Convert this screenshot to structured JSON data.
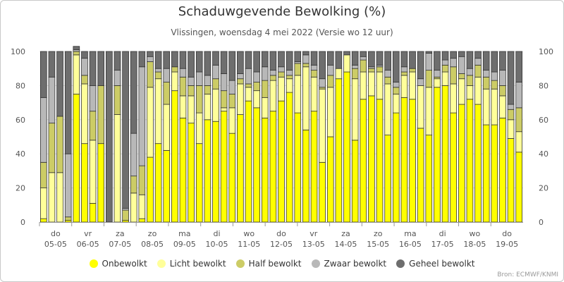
{
  "chart_data": {
    "type": "bar",
    "stacked": true,
    "title": "Schaduwgevende Bewolking (%)",
    "subtitle": "Vlissingen, woensdag 4 mei 2022 (Versie wo 12 uur)",
    "source": "Bron: ECMWF/KNMI",
    "ylim": [
      0,
      100
    ],
    "yticks": [
      0,
      20,
      40,
      60,
      80,
      100
    ],
    "grid": true,
    "legend_position": "bottom",
    "day_labels": [
      {
        "dow": "do",
        "date": "05-05"
      },
      {
        "dow": "vr",
        "date": "06-05"
      },
      {
        "dow": "za",
        "date": "07-05"
      },
      {
        "dow": "zo",
        "date": "08-05"
      },
      {
        "dow": "ma",
        "date": "09-05"
      },
      {
        "dow": "di",
        "date": "10-05"
      },
      {
        "dow": "wo",
        "date": "11-05"
      },
      {
        "dow": "do",
        "date": "12-05"
      },
      {
        "dow": "vr",
        "date": "13-05"
      },
      {
        "dow": "za",
        "date": "14-05"
      },
      {
        "dow": "zo",
        "date": "15-05"
      },
      {
        "dow": "ma",
        "date": "16-05"
      },
      {
        "dow": "di",
        "date": "17-05"
      },
      {
        "dow": "wo",
        "date": "18-05"
      },
      {
        "dow": "do",
        "date": "19-05"
      }
    ],
    "series": [
      {
        "name": "Onbewolkt",
        "color": "#ffff00",
        "values": [
          2,
          0,
          0,
          1,
          75,
          46,
          11,
          46,
          0,
          0,
          1,
          0,
          2,
          38,
          46,
          42,
          77,
          61,
          58,
          46,
          60,
          59,
          65,
          52,
          63,
          71,
          67,
          61,
          65,
          71,
          76,
          64,
          54,
          65,
          35,
          50,
          84,
          88,
          48,
          72,
          74,
          72,
          51,
          64,
          73,
          72,
          55,
          51,
          79,
          80,
          64,
          69,
          72,
          69,
          57,
          57,
          61,
          49,
          41
        ]
      },
      {
        "name": "Licht bewolkt",
        "color": "#ffff9a",
        "values": [
          18,
          29,
          29,
          0,
          23,
          35,
          37,
          0,
          0,
          63,
          0,
          17,
          14,
          41,
          38,
          27,
          11,
          13,
          16,
          18,
          15,
          19,
          2,
          15,
          18,
          8,
          10,
          12,
          18,
          14,
          8,
          22,
          37,
          20,
          43,
          29,
          6,
          10,
          36,
          16,
          14,
          16,
          30,
          11,
          13,
          16,
          25,
          28,
          5,
          8,
          17,
          15,
          8,
          16,
          21,
          21,
          13,
          11,
          12
        ]
      },
      {
        "name": "Half bewolkt",
        "color": "#cccc66",
        "values": [
          15,
          29,
          33,
          2,
          2,
          5,
          17,
          34,
          0,
          17,
          6,
          10,
          17,
          15,
          4,
          13,
          3,
          11,
          6,
          16,
          5,
          6,
          10,
          8,
          3,
          2,
          5,
          10,
          3,
          3,
          2,
          7,
          2,
          4,
          1,
          7,
          0,
          0,
          6,
          7,
          2,
          3,
          4,
          4,
          2,
          2,
          0,
          10,
          1,
          4,
          10,
          3,
          6,
          7,
          7,
          5,
          6,
          6,
          14
        ]
      },
      {
        "name": "Zwaar bewolkt",
        "color": "#b8b8b8",
        "values": [
          38,
          27,
          0,
          37,
          1,
          10,
          15,
          0,
          0,
          9,
          1,
          25,
          58,
          3,
          2,
          8,
          0,
          5,
          5,
          8,
          6,
          8,
          10,
          8,
          3,
          9,
          6,
          8,
          3,
          3,
          3,
          1,
          5,
          3,
          5,
          6,
          0,
          0,
          2,
          2,
          1,
          1,
          4,
          3,
          3,
          0,
          4,
          10,
          4,
          3,
          5,
          10,
          4,
          4,
          4,
          5,
          9,
          3,
          15
        ]
      },
      {
        "name": "Geheel bewolkt",
        "color": "#6e6e6e",
        "values": [
          27,
          15,
          38,
          60,
          2,
          4,
          20,
          20,
          100,
          11,
          92,
          48,
          9,
          3,
          10,
          10,
          9,
          10,
          15,
          12,
          14,
          8,
          13,
          17,
          13,
          10,
          12,
          9,
          11,
          9,
          11,
          6,
          2,
          8,
          16,
          8,
          10,
          2,
          8,
          3,
          9,
          8,
          11,
          18,
          9,
          10,
          16,
          1,
          11,
          5,
          4,
          3,
          10,
          4,
          11,
          12,
          11,
          31,
          18
        ]
      }
    ]
  }
}
